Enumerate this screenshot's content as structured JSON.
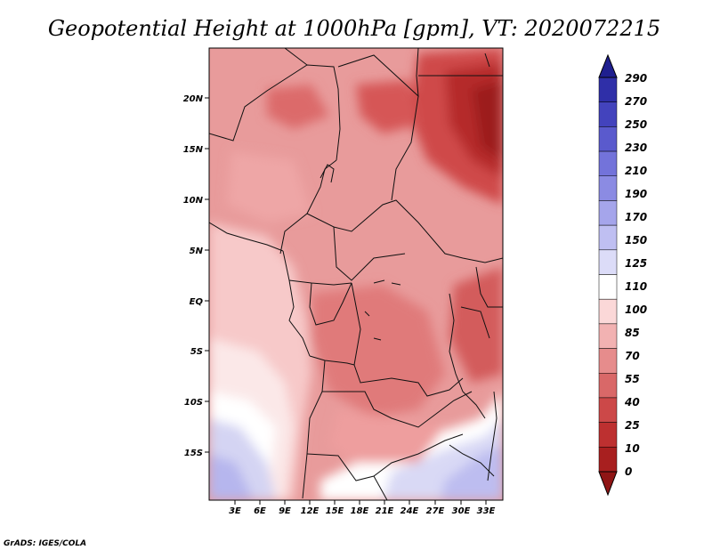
{
  "title": "Geopotential Height at 1000hPa [gpm], VT: 2020072215",
  "credit": "GrADS: IGES/COLA",
  "map": {
    "lat_labels": [
      "20N",
      "15N",
      "10N",
      "5N",
      "EQ",
      "5S",
      "10S",
      "15S"
    ],
    "lon_labels": [
      "3E",
      "6E",
      "9E",
      "12E",
      "15E",
      "18E",
      "21E",
      "24E",
      "27E",
      "30E",
      "33E"
    ]
  },
  "colorbar": {
    "labels": [
      "290",
      "270",
      "250",
      "230",
      "210",
      "190",
      "170",
      "150",
      "125",
      "110",
      "100",
      "85",
      "70",
      "55",
      "40",
      "25",
      "10",
      "0"
    ],
    "colors": [
      "#1f1f8f",
      "#2f2fa8",
      "#4343bd",
      "#5a5acd",
      "#7373da",
      "#8b8be3",
      "#a5a5eb",
      "#bfbff2",
      "#dcdcf8",
      "#ffffff",
      "#fbd8d8",
      "#f2b2b2",
      "#e68c8c",
      "#d96868",
      "#cc4848",
      "#bd3030",
      "#a81f1f",
      "#8f1515"
    ]
  }
}
